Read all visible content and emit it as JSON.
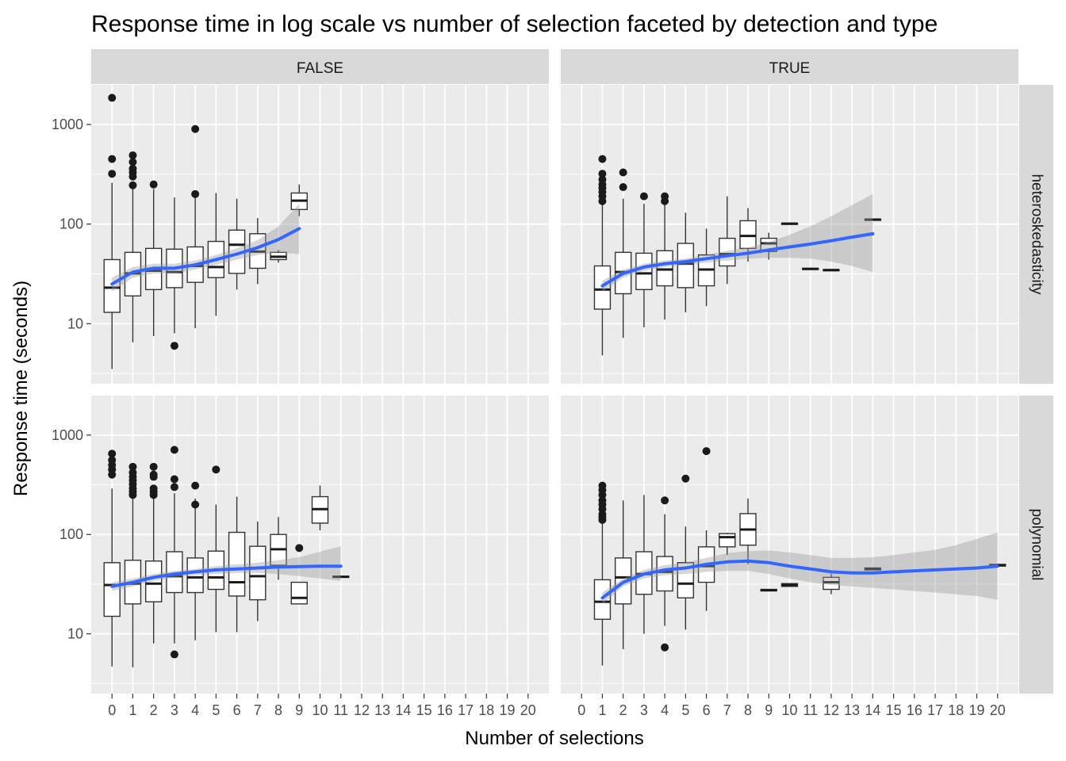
{
  "chart_data": {
    "type": "box",
    "title": "Response time in log scale vs number of selection faceted by detection and type",
    "xlabel": "Number of selections",
    "ylabel": "Response time (seconds)",
    "x_ticks": [
      "0",
      "1",
      "2",
      "3",
      "4",
      "5",
      "6",
      "7",
      "8",
      "9",
      "10",
      "11",
      "12",
      "13",
      "14",
      "15",
      "16",
      "17",
      "18",
      "19",
      "20"
    ],
    "y_scale": "log10",
    "y_ticks": [
      10,
      100,
      1000
    ],
    "ylim": [
      2.5,
      2500
    ],
    "xlim": [
      -1,
      21
    ],
    "grid": true,
    "col_facet": [
      "FALSE",
      "TRUE"
    ],
    "row_facet": [
      "heteroskedasticity",
      "polynomial"
    ],
    "colors": {
      "smooth_line": "#3366ff",
      "ribbon": "#999999",
      "panel_bg": "#ebebeb",
      "strip_bg": "#d9d9d9",
      "gridline": "#ffffff"
    },
    "panels": [
      {
        "col": "FALSE",
        "row": "heteroskedasticity",
        "boxes": [
          {
            "x": 0,
            "q1": 13,
            "median": 23,
            "q3": 44,
            "low": 3.5,
            "high": 260,
            "outliers": [
              320,
              450,
              1850
            ]
          },
          {
            "x": 1,
            "q1": 19,
            "median": 32,
            "q3": 52,
            "low": 6.5,
            "high": 230,
            "outliers": [
              245,
              300,
              330,
              360,
              420,
              490
            ]
          },
          {
            "x": 2,
            "q1": 22,
            "median": 34,
            "q3": 57,
            "low": 7.5,
            "high": 225,
            "outliers": [
              250
            ]
          },
          {
            "x": 3,
            "q1": 23,
            "median": 33,
            "q3": 56,
            "low": 8,
            "high": 185,
            "outliers": [
              6
            ]
          },
          {
            "x": 4,
            "q1": 26,
            "median": 38,
            "q3": 59,
            "low": 9,
            "high": 185,
            "outliers": [
              200,
              900
            ]
          },
          {
            "x": 5,
            "q1": 29,
            "median": 37,
            "q3": 67,
            "low": 12,
            "high": 205,
            "outliers": []
          },
          {
            "x": 6,
            "q1": 32,
            "median": 62,
            "q3": 87,
            "low": 22,
            "high": 180,
            "outliers": []
          },
          {
            "x": 7,
            "q1": 36,
            "median": 53,
            "q3": 80,
            "low": 25,
            "high": 115,
            "outliers": []
          },
          {
            "x": 8,
            "q1": 44,
            "median": 47,
            "q3": 52,
            "low": 41,
            "high": 55,
            "outliers": []
          },
          {
            "x": 9,
            "q1": 140,
            "median": 172,
            "q3": 205,
            "low": 120,
            "high": 250,
            "outliers": []
          }
        ],
        "smooth": {
          "x": [
            0,
            1,
            2,
            3,
            4,
            5,
            6,
            7,
            8,
            9
          ],
          "y": [
            25,
            33,
            36,
            36,
            39,
            44,
            50,
            58,
            70,
            90
          ],
          "lower": [
            21,
            29,
            32,
            32,
            35,
            39,
            44,
            49,
            52,
            50
          ],
          "upper": [
            29,
            37,
            40,
            40,
            43,
            49,
            57,
            69,
            95,
            160
          ]
        }
      },
      {
        "col": "TRUE",
        "row": "heteroskedasticity",
        "boxes": [
          {
            "x": 1,
            "q1": 14,
            "median": 22,
            "q3": 38,
            "low": 4.8,
            "high": 160,
            "outliers": [
              170,
              190,
              210,
              230,
              250,
              280,
              320,
              450
            ]
          },
          {
            "x": 2,
            "q1": 20,
            "median": 33,
            "q3": 52,
            "low": 7.2,
            "high": 180,
            "outliers": [
              235,
              330
            ]
          },
          {
            "x": 3,
            "q1": 22,
            "median": 32,
            "q3": 51,
            "low": 9.2,
            "high": 160,
            "outliers": [
              190
            ]
          },
          {
            "x": 4,
            "q1": 24,
            "median": 35,
            "q3": 54,
            "low": 11,
            "high": 160,
            "outliers": [
              170,
              190
            ]
          },
          {
            "x": 5,
            "q1": 23,
            "median": 40,
            "q3": 64,
            "low": 13,
            "high": 130,
            "outliers": []
          },
          {
            "x": 6,
            "q1": 24,
            "median": 35,
            "q3": 49,
            "low": 15,
            "high": 90,
            "outliers": []
          },
          {
            "x": 7,
            "q1": 38,
            "median": 50,
            "q3": 72,
            "low": 25,
            "high": 190,
            "outliers": []
          },
          {
            "x": 8,
            "q1": 57,
            "median": 76,
            "q3": 108,
            "low": 42,
            "high": 145,
            "outliers": []
          },
          {
            "x": 9,
            "q1": 53,
            "median": 64,
            "q3": 72,
            "low": 44,
            "high": 82,
            "outliers": []
          },
          {
            "x": 10,
            "q1": 100,
            "median": 101,
            "q3": 102,
            "low": 100,
            "high": 102,
            "outliers": []
          },
          {
            "x": 11,
            "q1": 35,
            "median": 35.5,
            "q3": 36,
            "low": 35,
            "high": 36,
            "outliers": []
          },
          {
            "x": 12,
            "q1": 34,
            "median": 34.5,
            "q3": 35,
            "low": 34,
            "high": 35,
            "outliers": []
          },
          {
            "x": 14,
            "q1": 110,
            "median": 111,
            "q3": 112,
            "low": 110,
            "high": 112,
            "outliers": []
          }
        ],
        "smooth": {
          "x": [
            1,
            2,
            3,
            4,
            5,
            6,
            7,
            8,
            9,
            10,
            11,
            12,
            13,
            14
          ],
          "y": [
            24,
            32,
            37,
            40,
            42,
            45,
            48,
            51,
            55,
            59,
            63,
            68,
            74,
            80
          ],
          "lower": [
            21,
            29,
            34,
            37,
            39,
            41,
            43,
            45,
            46,
            46,
            45,
            42,
            38,
            33
          ],
          "upper": [
            27,
            35,
            40,
            43,
            45,
            49,
            54,
            58,
            66,
            78,
            95,
            120,
            155,
            200
          ]
        }
      },
      {
        "col": "FALSE",
        "row": "polynomial",
        "boxes": [
          {
            "x": 0,
            "q1": 15,
            "median": 31,
            "q3": 52,
            "low": 4.7,
            "high": 290,
            "outliers": [
              400,
              450,
              500,
              560,
              650
            ]
          },
          {
            "x": 1,
            "q1": 20,
            "median": 32,
            "q3": 55,
            "low": 4.6,
            "high": 240,
            "outliers": [
              250,
              270,
              290,
              320,
              350,
              380,
              420,
              480
            ]
          },
          {
            "x": 2,
            "q1": 21,
            "median": 32,
            "q3": 54,
            "low": 8,
            "high": 230,
            "outliers": [
              250,
              270,
              290,
              380,
              400,
              480
            ]
          },
          {
            "x": 3,
            "q1": 26,
            "median": 38,
            "q3": 67,
            "low": 8,
            "high": 260,
            "outliers": [
              6.2,
              300,
              360,
              710
            ]
          },
          {
            "x": 4,
            "q1": 26,
            "median": 37,
            "q3": 58,
            "low": 8.6,
            "high": 230,
            "outliers": [
              200,
              310
            ]
          },
          {
            "x": 5,
            "q1": 28,
            "median": 37,
            "q3": 68,
            "low": 10.4,
            "high": 200,
            "outliers": [
              450
            ]
          },
          {
            "x": 6,
            "q1": 24,
            "median": 33,
            "q3": 105,
            "low": 10.4,
            "high": 240,
            "outliers": []
          },
          {
            "x": 7,
            "q1": 22,
            "median": 38,
            "q3": 76,
            "low": 13.4,
            "high": 135,
            "outliers": []
          },
          {
            "x": 8,
            "q1": 49,
            "median": 71,
            "q3": 100,
            "low": 35,
            "high": 150,
            "outliers": []
          },
          {
            "x": 9,
            "q1": 20,
            "median": 23,
            "q3": 33,
            "low": 20,
            "high": 33,
            "outliers": [
              73
            ]
          },
          {
            "x": 10,
            "q1": 130,
            "median": 180,
            "q3": 240,
            "low": 110,
            "high": 310,
            "outliers": []
          },
          {
            "x": 11,
            "q1": 37,
            "median": 37.5,
            "q3": 38,
            "low": 37,
            "high": 38,
            "outliers": []
          }
        ],
        "smooth": {
          "x": [
            0,
            1,
            2,
            3,
            4,
            5,
            6,
            7,
            8,
            9,
            10,
            11
          ],
          "y": [
            30,
            33,
            37,
            40,
            42,
            44,
            45,
            46,
            47,
            47.5,
            48,
            48
          ],
          "lower": [
            27,
            30,
            34,
            37,
            39,
            40,
            41,
            41,
            40,
            38,
            36,
            34
          ],
          "upper": [
            33,
            36,
            40,
            43,
            45,
            48,
            50,
            52,
            55,
            59,
            67,
            76
          ]
        }
      },
      {
        "col": "TRUE",
        "row": "polynomial",
        "boxes": [
          {
            "x": 1,
            "q1": 14,
            "median": 21,
            "q3": 35,
            "low": 4.8,
            "high": 130,
            "outliers": [
              140,
              150,
              160,
              180,
              200,
              220,
              250,
              280,
              310
            ]
          },
          {
            "x": 2,
            "q1": 20,
            "median": 37,
            "q3": 58,
            "low": 7,
            "high": 220,
            "outliers": []
          },
          {
            "x": 3,
            "q1": 25,
            "median": 40,
            "q3": 67,
            "low": 10,
            "high": 250,
            "outliers": []
          },
          {
            "x": 4,
            "q1": 27,
            "median": 42,
            "q3": 60,
            "low": 12,
            "high": 160,
            "outliers": [
              7.3,
              220
            ]
          },
          {
            "x": 5,
            "q1": 23,
            "median": 32,
            "q3": 52,
            "low": 11,
            "high": 120,
            "outliers": [
              365
            ]
          },
          {
            "x": 6,
            "q1": 33,
            "median": 48,
            "q3": 75,
            "low": 17,
            "high": 110,
            "outliers": [
              690
            ]
          },
          {
            "x": 7,
            "q1": 75,
            "median": 94,
            "q3": 102,
            "low": 62,
            "high": 104,
            "outliers": []
          },
          {
            "x": 8,
            "q1": 78,
            "median": 112,
            "q3": 162,
            "low": 50,
            "high": 230,
            "outliers": []
          },
          {
            "x": 9,
            "q1": 27,
            "median": 27.5,
            "q3": 28,
            "low": 27,
            "high": 28,
            "outliers": []
          },
          {
            "x": 10,
            "q1": 30,
            "median": 31,
            "q3": 32,
            "low": 30,
            "high": 32,
            "outliers": []
          },
          {
            "x": 12,
            "q1": 28,
            "median": 33,
            "q3": 37,
            "low": 25,
            "high": 40,
            "outliers": []
          },
          {
            "x": 14,
            "q1": 44,
            "median": 45,
            "q3": 46,
            "low": 44,
            "high": 46,
            "outliers": []
          },
          {
            "x": 20,
            "q1": 48,
            "median": 49,
            "q3": 50,
            "low": 48,
            "high": 50,
            "outliers": []
          }
        ],
        "smooth": {
          "x": [
            1,
            2,
            3,
            4,
            5,
            6,
            7,
            8,
            9,
            10,
            11,
            12,
            13,
            14,
            15,
            16,
            17,
            18,
            19,
            20
          ],
          "y": [
            23,
            33,
            40,
            44,
            46,
            50,
            53,
            54,
            52,
            48,
            45,
            42,
            41,
            41,
            42,
            43,
            44,
            45,
            46,
            48
          ],
          "lower": [
            20,
            30,
            36,
            39,
            40,
            42,
            43,
            43,
            40,
            36,
            33,
            31,
            30,
            29,
            28,
            27,
            26,
            25,
            24,
            22
          ],
          "upper": [
            26,
            36,
            44,
            49,
            52,
            58,
            65,
            68,
            69,
            66,
            62,
            58,
            58,
            59,
            62,
            66,
            70,
            78,
            90,
            105
          ]
        }
      }
    ]
  }
}
